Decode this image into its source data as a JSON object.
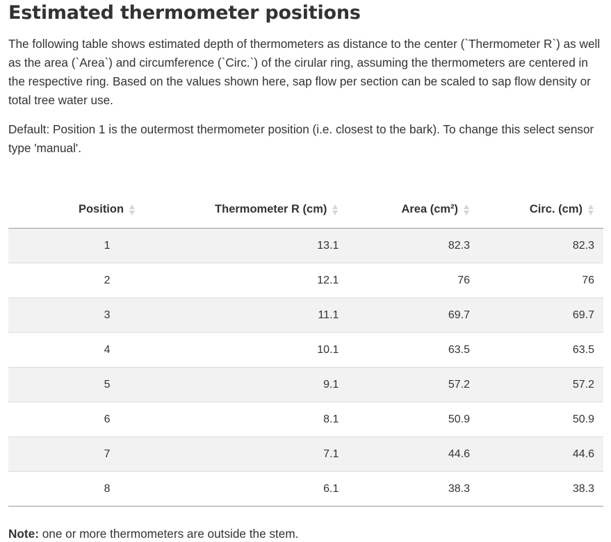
{
  "title": "Estimated thermometer positions",
  "intro": "The following table shows estimated depth of thermometers as distance to the center (`Thermometer R`) as well as the area (`Area`) and circumference (`Circ.`) of the cirular ring, assuming the thermometers are centered in the respective ring. Based on the values shown here, sap flow per section can be scaled to sap flow density or total tree water use.",
  "default_text": "Default: Position 1 is the outermost thermometer position (i.e. closest to the bark). To change this select sensor type 'manual'.",
  "table": {
    "headers": [
      "Position",
      "Thermometer R (cm)",
      "Area (cm²)",
      "Circ. (cm)"
    ],
    "rows": [
      [
        "1",
        "13.1",
        "82.3",
        "82.3"
      ],
      [
        "2",
        "12.1",
        "76",
        "76"
      ],
      [
        "3",
        "11.1",
        "69.7",
        "69.7"
      ],
      [
        "4",
        "10.1",
        "63.5",
        "63.5"
      ],
      [
        "5",
        "9.1",
        "57.2",
        "57.2"
      ],
      [
        "6",
        "8.1",
        "50.9",
        "50.9"
      ],
      [
        "7",
        "7.1",
        "44.6",
        "44.6"
      ],
      [
        "8",
        "6.1",
        "38.3",
        "38.3"
      ]
    ],
    "sort_icon": "sort-both-icon"
  },
  "note": {
    "label": "Note:",
    "text": " one or more thermometers are outside the stem."
  }
}
